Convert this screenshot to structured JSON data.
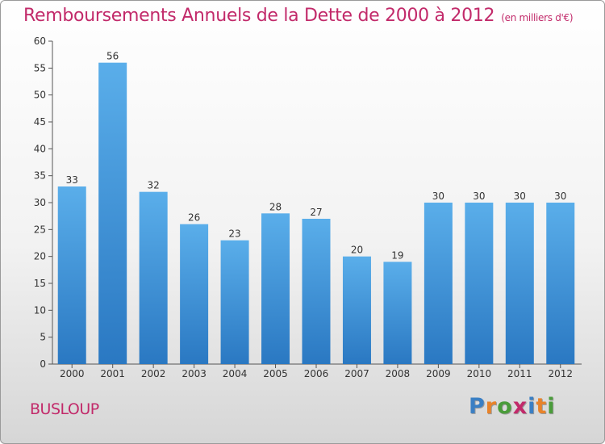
{
  "header": {
    "title": "Remboursements Annuels de la Dette de 2000 à 2012",
    "subtitle": "(en milliers d'€)"
  },
  "footer": {
    "commune": "BUSLOUP",
    "logo_letters": [
      "P",
      "r",
      "o",
      "x",
      "i",
      "t",
      "i"
    ],
    "logo_colors": [
      "#3a7fc4",
      "#e8832a",
      "#4a9c3a",
      "#c22a6a",
      "#3a7fc4",
      "#e8832a",
      "#4a9c3a"
    ]
  },
  "chart_data": {
    "type": "bar",
    "categories": [
      "2000",
      "2001",
      "2002",
      "2003",
      "2004",
      "2005",
      "2006",
      "2007",
      "2008",
      "2009",
      "2010",
      "2011",
      "2012"
    ],
    "values": [
      33,
      56,
      32,
      26,
      23,
      28,
      27,
      20,
      19,
      30,
      30,
      30,
      30
    ],
    "title": "Remboursements Annuels de la Dette de 2000 à 2012",
    "ylim": [
      0,
      60
    ],
    "yticks": [
      0,
      5,
      10,
      15,
      20,
      25,
      30,
      35,
      40,
      45,
      50,
      55,
      60
    ],
    "grid": false,
    "bar_color_top": "#5aaeea",
    "bar_color_bottom": "#2a78c2"
  }
}
